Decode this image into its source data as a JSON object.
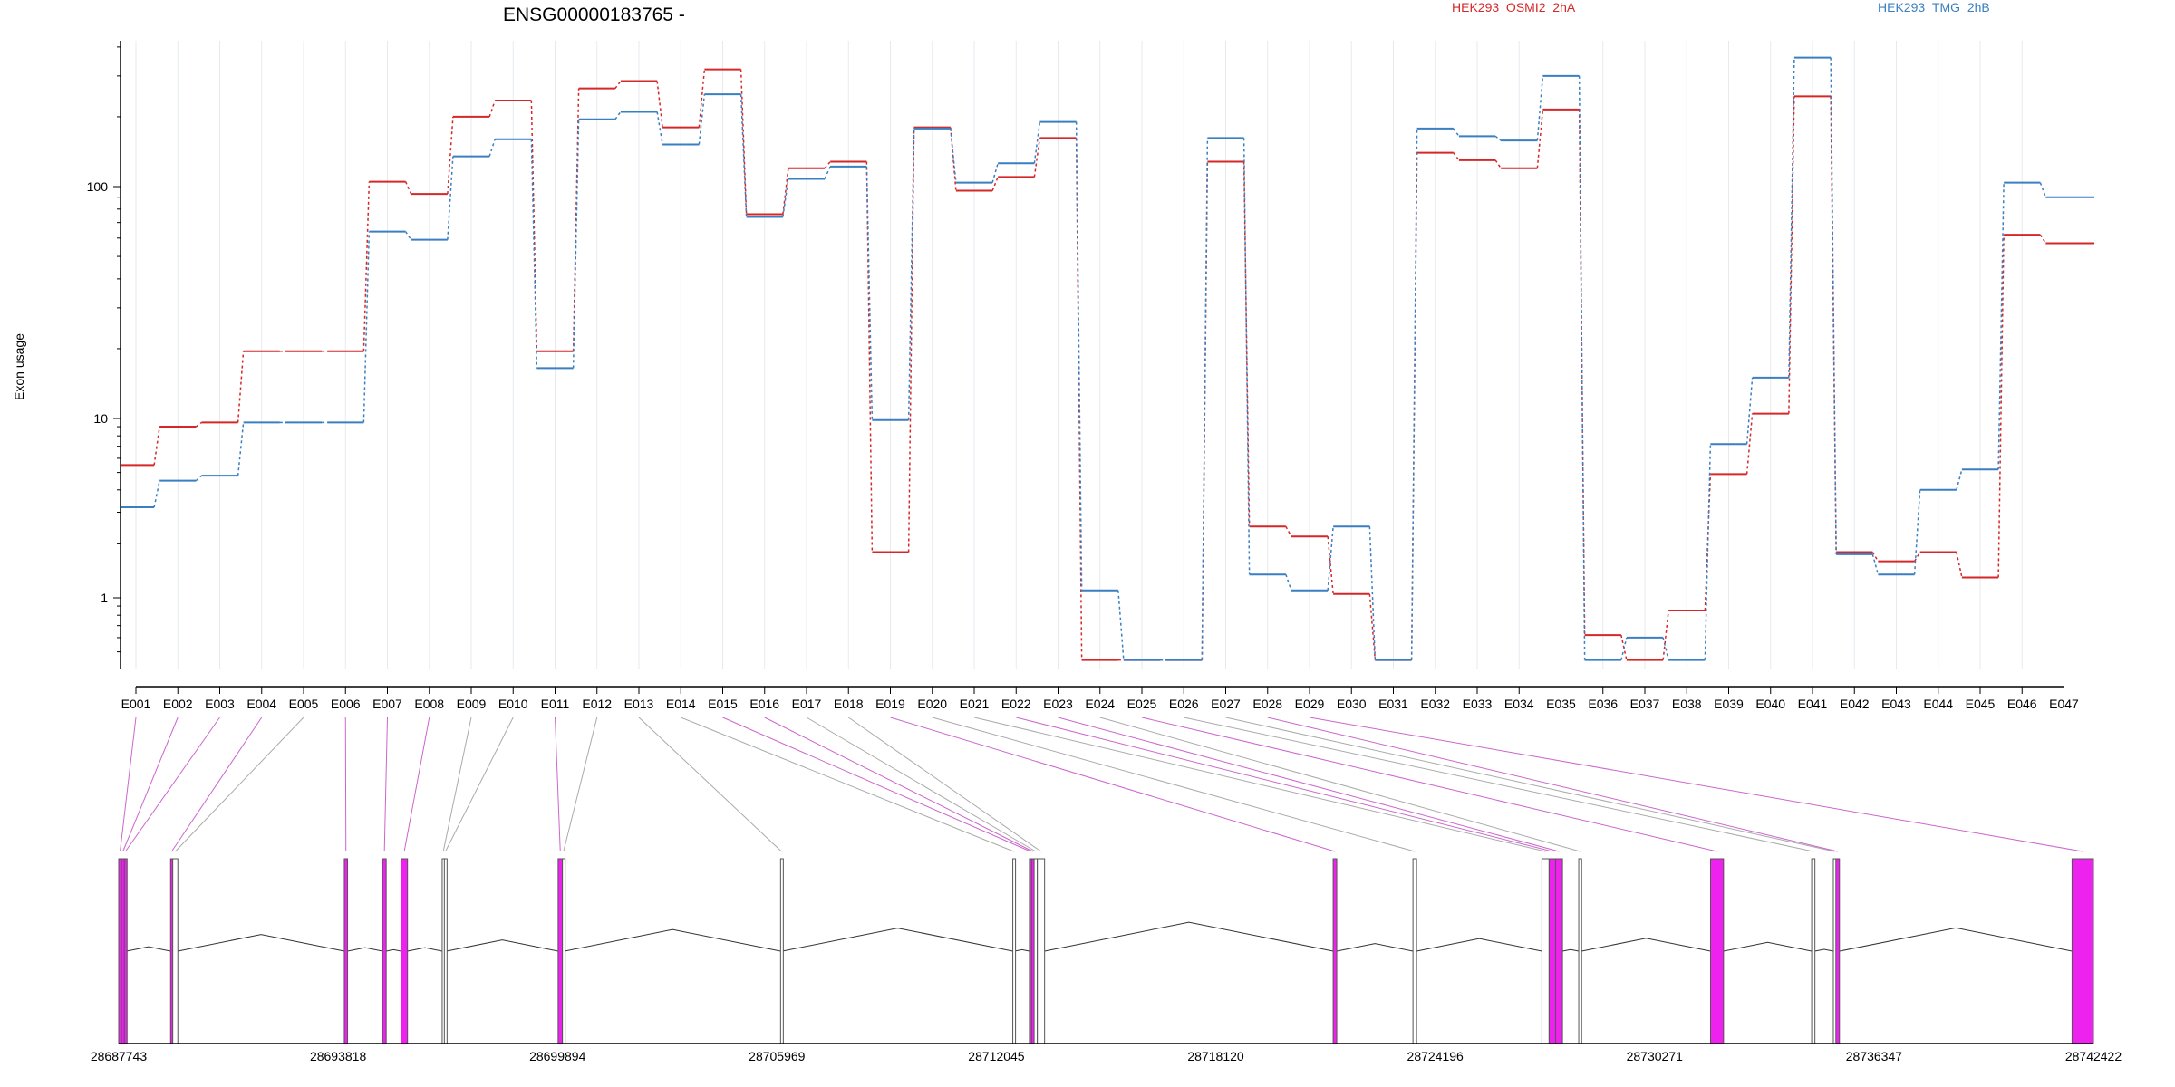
{
  "chart_data": {
    "type": "line",
    "title": "ENSG00000183765 -",
    "ylabel": "Exon usage",
    "yscale": "log",
    "ylim": [
      0.45,
      400
    ],
    "yticks": [
      "1",
      "10",
      "100"
    ],
    "grid": "vertical",
    "legend_position": "top-right",
    "colors": {
      "series_a": "#d62728",
      "series_b": "#3a7fc1",
      "exon_highlight": "#ee22ee",
      "exon_plain": "#cccccc"
    },
    "categories": [
      "E001",
      "E002",
      "E003",
      "E004",
      "E005",
      "E006",
      "E007",
      "E008",
      "E009",
      "E010",
      "E011",
      "E012",
      "E013",
      "E014",
      "E015",
      "E016",
      "E017",
      "E018",
      "E019",
      "E020",
      "E021",
      "E022",
      "E023",
      "E024",
      "E025",
      "E026",
      "E027",
      "E028",
      "E029",
      "E030",
      "E031",
      "E032",
      "E033",
      "E034",
      "E035",
      "E036",
      "E037",
      "E038",
      "E039",
      "E040",
      "E041",
      "E042",
      "E043",
      "E044",
      "E045",
      "E046",
      "E047"
    ],
    "series": [
      {
        "name": "HEK293_OSMI2_2hA",
        "values": [
          5.5,
          9,
          9.5,
          19.5,
          19.5,
          19.5,
          105,
          93,
          200,
          235,
          19.5,
          265,
          285,
          180,
          320,
          76,
          120,
          128,
          1.8,
          180,
          96,
          110,
          162,
          0.45,
          0.45,
          0.45,
          128,
          2.5,
          2.2,
          1.05,
          0.45,
          140,
          130,
          120,
          215,
          0.62,
          0.45,
          0.85,
          4.9,
          10.5,
          245,
          1.8,
          1.6,
          1.8,
          1.3,
          62,
          57
        ]
      },
      {
        "name": "HEK293_TMG_2hB",
        "values": [
          3.2,
          4.5,
          4.8,
          9.5,
          9.5,
          9.5,
          64,
          59,
          135,
          160,
          16.5,
          195,
          210,
          152,
          250,
          74,
          108,
          122,
          9.8,
          178,
          104,
          126,
          190,
          1.1,
          0.45,
          0.45,
          162,
          1.35,
          1.1,
          2.5,
          0.45,
          178,
          165,
          158,
          300,
          0.45,
          0.6,
          0.45,
          7.2,
          15,
          360,
          1.75,
          1.35,
          4,
          5.2,
          104,
          90
        ]
      }
    ],
    "genomic_axis": {
      "tick_labels": [
        "28687743",
        "28693818",
        "28699894",
        "28705969",
        "28712045",
        "28718120",
        "28724196",
        "28730271",
        "28736347",
        "28742422"
      ],
      "exons": [
        {
          "id": "E001",
          "start": 28687743,
          "end": 28687820,
          "highlight": true
        },
        {
          "id": "E002",
          "start": 28687820,
          "end": 28687900,
          "highlight": true
        },
        {
          "id": "E003",
          "start": 28687900,
          "end": 28687960,
          "highlight": true
        },
        {
          "id": "E004",
          "start": 28689180,
          "end": 28689240,
          "highlight": true
        },
        {
          "id": "E005",
          "start": 28689240,
          "end": 28689380,
          "highlight": false
        },
        {
          "id": "E006",
          "start": 28693990,
          "end": 28694080,
          "highlight": true
        },
        {
          "id": "E007",
          "start": 28695050,
          "end": 28695150,
          "highlight": true
        },
        {
          "id": "E008",
          "start": 28695560,
          "end": 28695740,
          "highlight": true
        },
        {
          "id": "E009",
          "start": 28696700,
          "end": 28696760,
          "highlight": false
        },
        {
          "id": "E010",
          "start": 28696760,
          "end": 28696820,
          "highlight": false
        },
        {
          "id": "E011",
          "start": 28699910,
          "end": 28700030,
          "highlight": true
        },
        {
          "id": "E012",
          "start": 28700030,
          "end": 28700090,
          "highlight": false
        },
        {
          "id": "E013",
          "start": 28706070,
          "end": 28706120,
          "highlight": false
        },
        {
          "id": "E014",
          "start": 28712500,
          "end": 28712550,
          "highlight": false
        },
        {
          "id": "E015",
          "start": 28712960,
          "end": 28713020,
          "highlight": true
        },
        {
          "id": "E016",
          "start": 28713020,
          "end": 28713090,
          "highlight": true
        },
        {
          "id": "E017",
          "start": 28713090,
          "end": 28713180,
          "highlight": false
        },
        {
          "id": "E018",
          "start": 28713180,
          "end": 28713380,
          "highlight": false
        },
        {
          "id": "E019",
          "start": 28721370,
          "end": 28721470,
          "highlight": true
        },
        {
          "id": "E020",
          "start": 28723580,
          "end": 28723680,
          "highlight": false
        },
        {
          "id": "E021",
          "start": 28727150,
          "end": 28727350,
          "highlight": false
        },
        {
          "id": "E022",
          "start": 28727350,
          "end": 28727530,
          "highlight": true
        },
        {
          "id": "E023",
          "start": 28727530,
          "end": 28727720,
          "highlight": true
        },
        {
          "id": "E024",
          "start": 28728170,
          "end": 28728250,
          "highlight": false
        },
        {
          "id": "E025",
          "start": 28731820,
          "end": 28732180,
          "highlight": true
        },
        {
          "id": "E026",
          "start": 28734620,
          "end": 28734710,
          "highlight": false
        },
        {
          "id": "E027",
          "start": 28735220,
          "end": 28735290,
          "highlight": false
        },
        {
          "id": "E028",
          "start": 28735290,
          "end": 28735390,
          "highlight": true
        },
        {
          "id": "E029",
          "start": 28741830,
          "end": 28742422,
          "highlight": true
        }
      ]
    }
  }
}
